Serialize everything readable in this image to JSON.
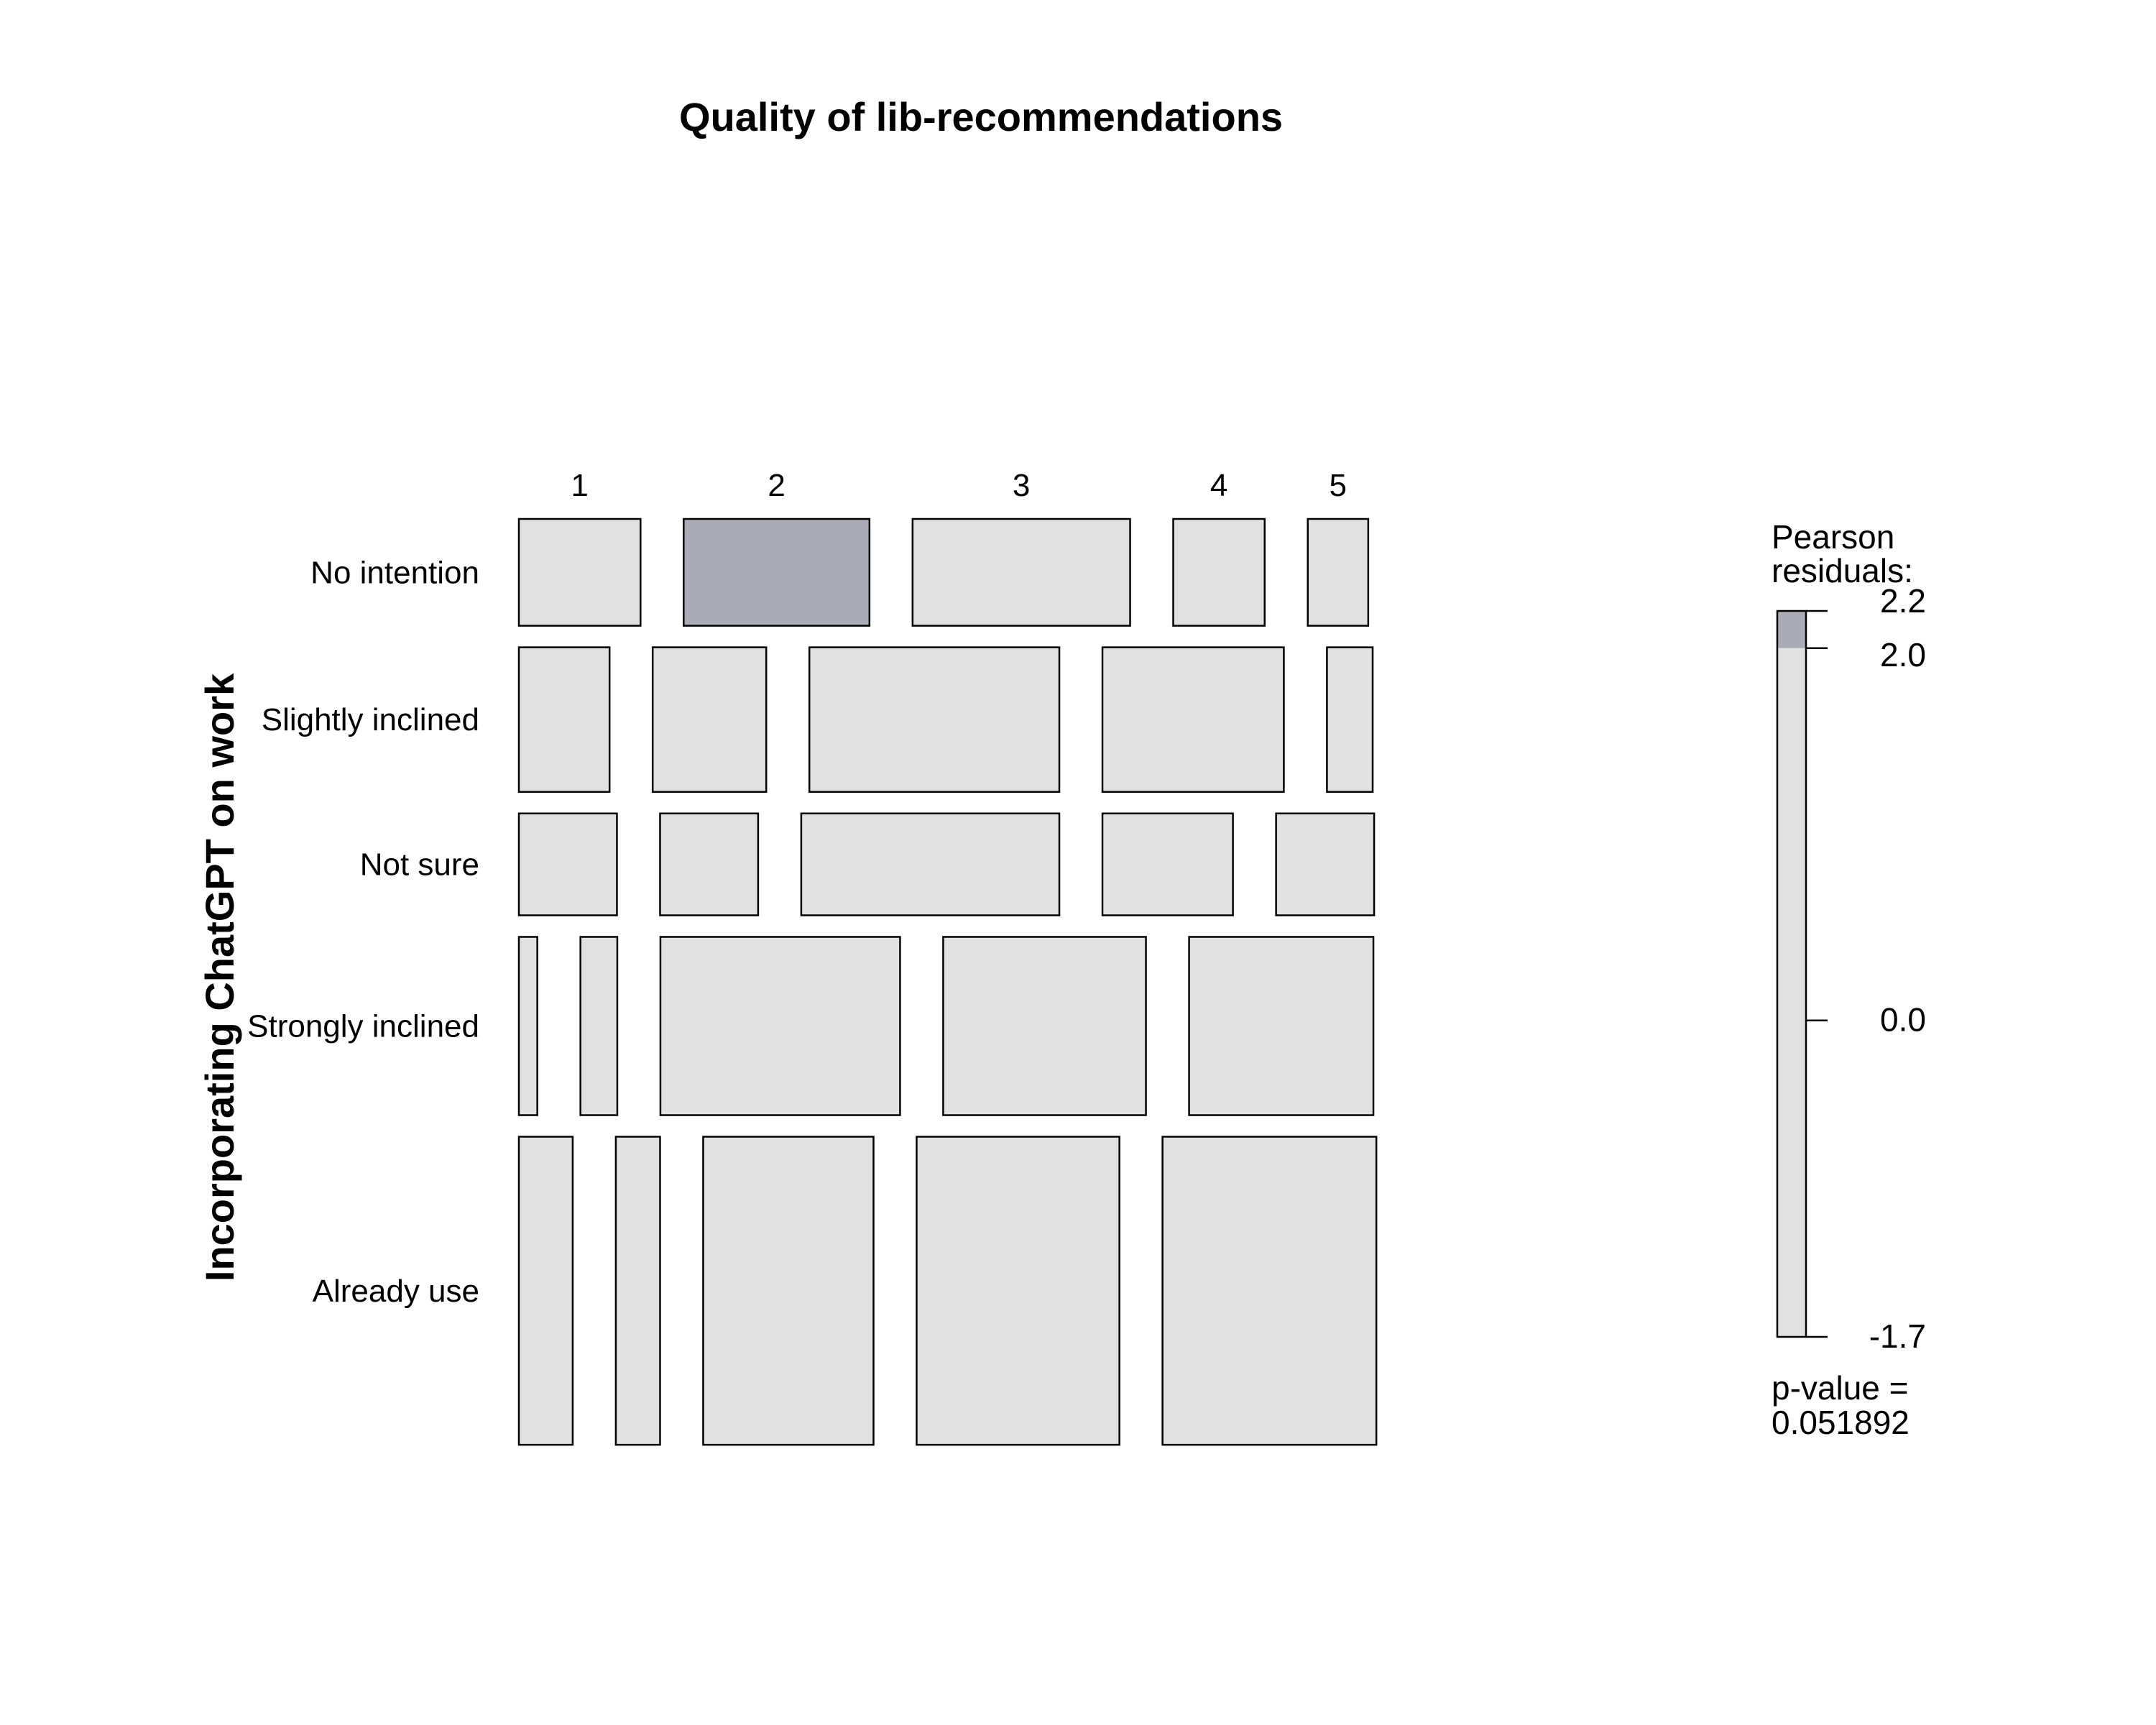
{
  "chart_data": {
    "type": "mosaic",
    "title": "Quality of lib-recommendations",
    "xlabel": "",
    "ylabel": "Incorporating ChatGPT on work",
    "x_categories": [
      "1",
      "2",
      "3",
      "4",
      "5"
    ],
    "y_categories": [
      "No intention",
      "Slightly inclined",
      "Not sure",
      "Strongly inclined",
      "Already use"
    ],
    "row_proportions": [
      0.13,
      0.176,
      0.124,
      0.217,
      0.375
    ],
    "cells": [
      [
        0.165,
        0.252,
        0.295,
        0.124,
        0.082
      ],
      [
        0.123,
        0.154,
        0.339,
        0.246,
        0.062
      ],
      [
        0.133,
        0.133,
        0.35,
        0.177,
        0.133
      ],
      [
        0.025,
        0.05,
        0.325,
        0.275,
        0.25
      ],
      [
        0.073,
        0.06,
        0.231,
        0.275,
        0.29
      ]
    ],
    "highlighted_cell": {
      "row": "No intention",
      "column": "2"
    },
    "colors": {
      "neutral": "#e1e1e1",
      "positive_residual": "#a9acb6",
      "stroke": "#000000"
    },
    "legend": {
      "title_line1": "Pearson",
      "title_line2": "residuals:",
      "ticks": [
        "2.2",
        "2.0",
        "0.0",
        "-1.7"
      ],
      "tick_values": [
        2.2,
        2.0,
        0.0,
        -1.7
      ],
      "range": [
        -1.7,
        2.2
      ],
      "shaded_above": 2.0,
      "pvalue_line1": "p-value =",
      "pvalue_line2": "0.051892"
    }
  }
}
